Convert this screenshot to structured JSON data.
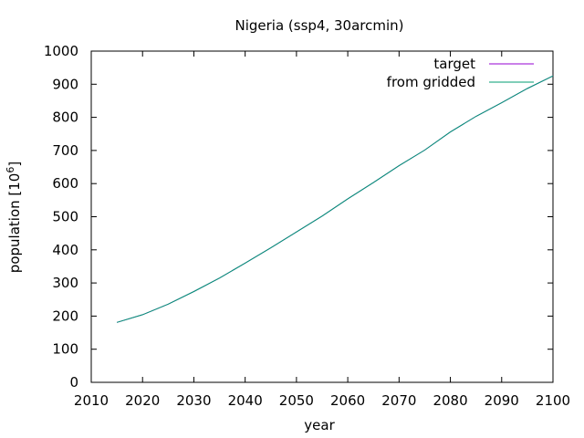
{
  "chart_data": {
    "type": "line",
    "title": "Nigeria (ssp4, 30arcmin)",
    "xlabel": "year",
    "ylabel": "population [10",
    "ylabel_sup": "6",
    "ylabel_tail": "]",
    "xlim": [
      2010,
      2100
    ],
    "ylim": [
      0,
      1000
    ],
    "xticks": [
      2010,
      2020,
      2030,
      2040,
      2050,
      2060,
      2070,
      2080,
      2090,
      2100
    ],
    "yticks": [
      0,
      100,
      200,
      300,
      400,
      500,
      600,
      700,
      800,
      900,
      1000
    ],
    "grid": false,
    "legend_position": "top-right",
    "series": [
      {
        "name": "target",
        "color": "#9400d3",
        "x": [
          2015,
          2020,
          2025,
          2030,
          2035,
          2040,
          2045,
          2050,
          2055,
          2060,
          2065,
          2070,
          2075,
          2080,
          2085,
          2090,
          2095,
          2100
        ],
        "y": [
          181,
          204,
          236,
          274,
          315,
          360,
          406,
          454,
          502,
          554,
          603,
          654,
          701,
          756,
          803,
          844,
          887,
          925
        ]
      },
      {
        "name": "from gridded",
        "color": "#009e73",
        "x": [
          2015,
          2020,
          2025,
          2030,
          2035,
          2040,
          2045,
          2050,
          2055,
          2060,
          2065,
          2070,
          2075,
          2080,
          2085,
          2090,
          2095,
          2100
        ],
        "y": [
          181,
          204,
          236,
          274,
          315,
          360,
          406,
          454,
          502,
          554,
          603,
          654,
          701,
          756,
          803,
          844,
          887,
          925
        ]
      }
    ]
  }
}
